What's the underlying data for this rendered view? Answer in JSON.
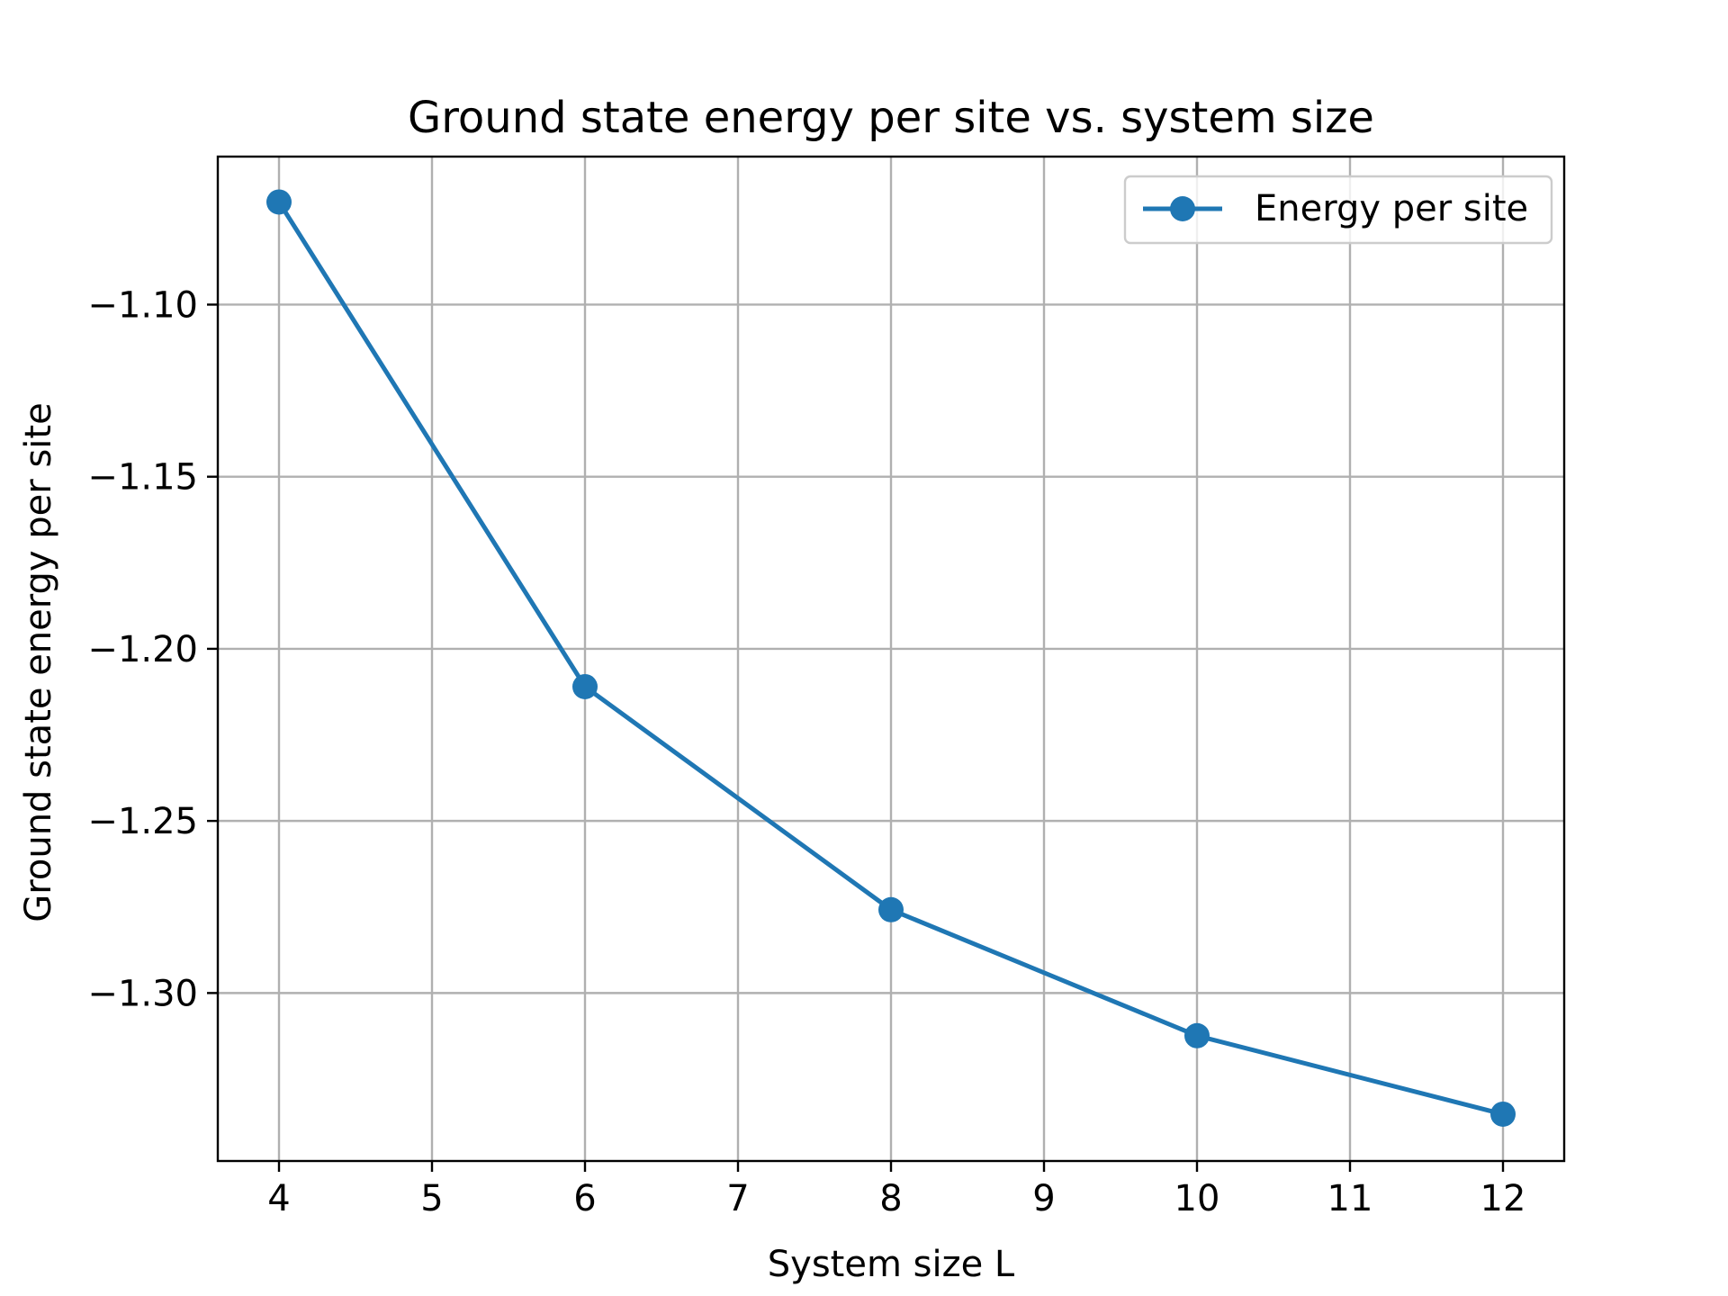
{
  "chart_data": {
    "type": "line",
    "title": "Ground state energy per site vs. system size",
    "xlabel": "System size L",
    "ylabel": "Ground state energy per site",
    "xlim": [
      3.6,
      12.4
    ],
    "ylim": [
      -1.3488,
      -1.057
    ],
    "xticks": [
      4,
      5,
      6,
      7,
      8,
      9,
      10,
      11,
      12
    ],
    "xtick_labels": [
      "4",
      "5",
      "6",
      "7",
      "8",
      "9",
      "10",
      "11",
      "12"
    ],
    "yticks": [
      -1.1,
      -1.15,
      -1.2,
      -1.25,
      -1.3
    ],
    "ytick_labels": [
      "−1.10",
      "−1.15",
      "−1.20",
      "−1.25",
      "−1.30"
    ],
    "grid": true,
    "legend_position": "top-right",
    "series": [
      {
        "name": "Energy per site",
        "color": "#1f77b4",
        "marker": "circle",
        "x": [
          4,
          6,
          8,
          10,
          12
        ],
        "y": [
          -1.0702,
          -1.211,
          -1.2758,
          -1.3124,
          -1.3352
        ]
      }
    ]
  }
}
